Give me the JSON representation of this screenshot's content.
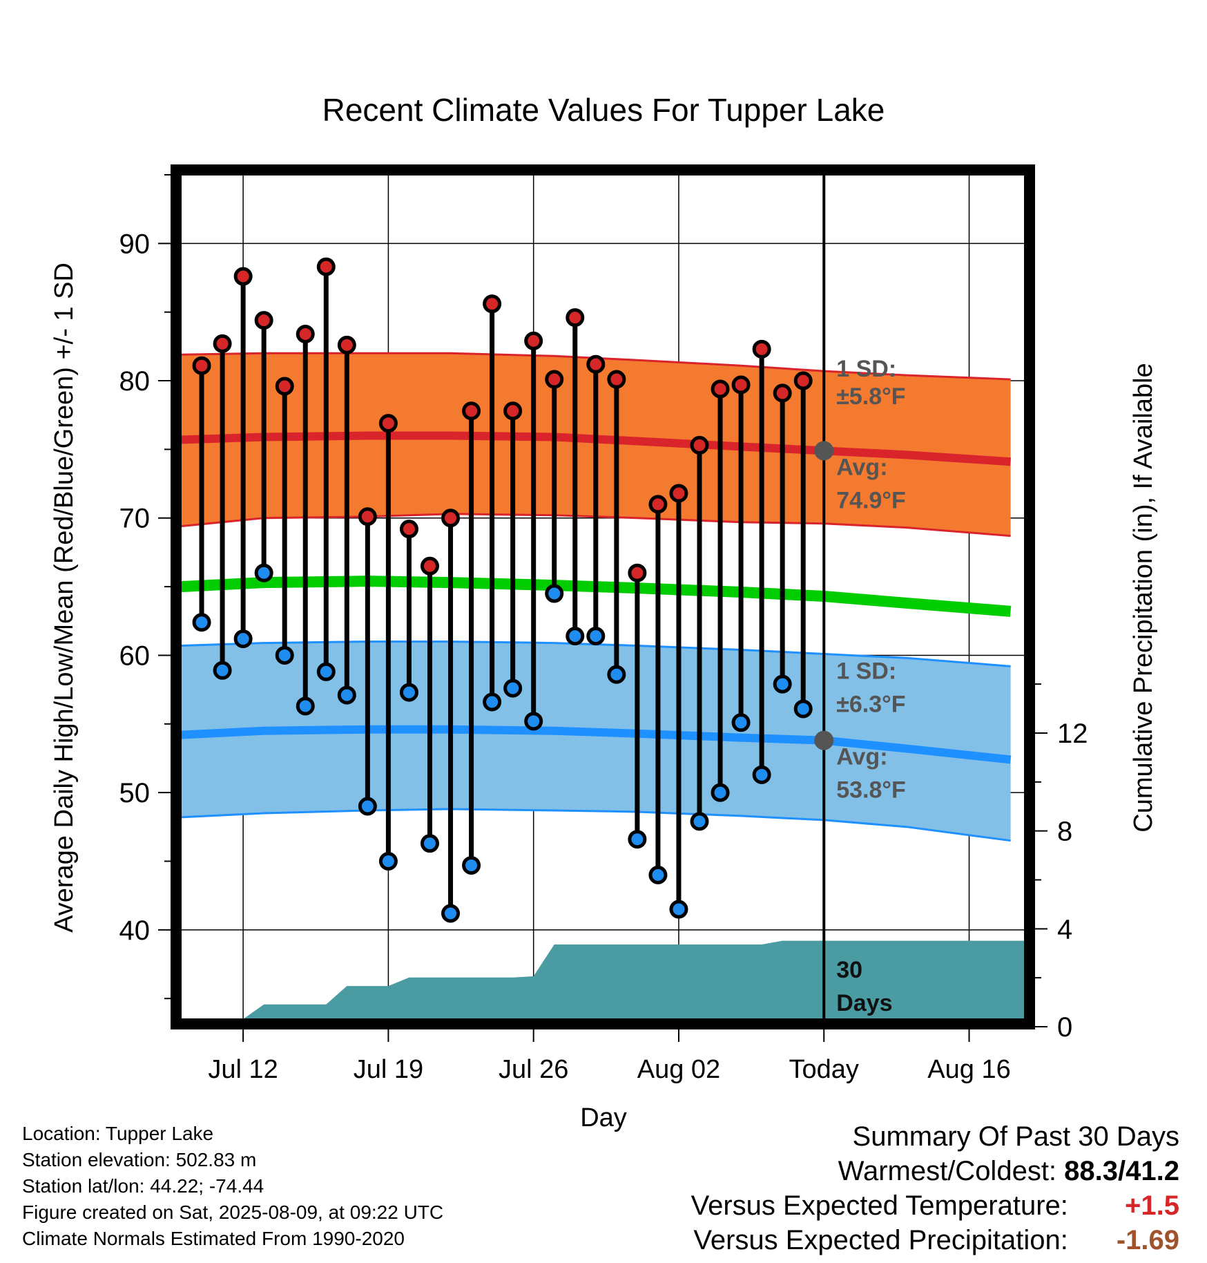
{
  "chart_data": {
    "type": "line",
    "title": "Recent Climate Values For Tupper Lake",
    "xlabel": "Day",
    "ylabel": "Average Daily High/Low/Mean (Red/Blue/Green) +/- 1 SD",
    "y2label": "Cumulative Precipitation (in), If Available",
    "x_start": "Jul 09",
    "x_end": "Aug 17",
    "today": "Aug 09",
    "ylim": [
      33.5,
      95
    ],
    "y2lim": [
      0,
      34.5
    ],
    "y_ticks": [
      40,
      50,
      60,
      70,
      80,
      90
    ],
    "y2_ticks": [
      0,
      4,
      8,
      12
    ],
    "x_ticks": [
      {
        "day": 3,
        "label": "Jul 12"
      },
      {
        "day": 10,
        "label": "Jul 19"
      },
      {
        "day": 17,
        "label": "Jul 26"
      },
      {
        "day": 24,
        "label": "Aug 02"
      },
      {
        "day": 31,
        "label": "Today"
      },
      {
        "day": 38,
        "label": "Aug 16"
      }
    ],
    "grid": true,
    "daily_high": [
      81.1,
      82.7,
      87.6,
      84.4,
      79.6,
      83.4,
      88.3,
      82.6,
      70.1,
      76.9,
      69.2,
      66.5,
      70.0,
      77.8,
      85.6,
      77.8,
      82.9,
      80.1,
      84.6,
      81.2,
      80.1,
      66.0,
      71.0,
      71.8,
      75.3,
      79.4,
      79.7,
      82.3,
      79.1,
      80.0
    ],
    "daily_low": [
      62.4,
      58.9,
      61.2,
      66.0,
      60.0,
      56.3,
      58.8,
      57.1,
      49.0,
      45.0,
      57.3,
      46.3,
      41.2,
      44.7,
      56.6,
      57.6,
      55.2,
      64.5,
      61.4,
      61.4,
      58.6,
      46.6,
      44.0,
      41.5,
      47.9,
      50.0,
      55.1,
      51.3,
      57.9,
      56.1
    ],
    "normal_high_avg": [
      75.7,
      75.9,
      76.0,
      76.0,
      75.9,
      75.6,
      75.2,
      74.9,
      74.6,
      74.1
    ],
    "normal_high_upper": [
      81.9,
      82.0,
      82.0,
      82.0,
      81.8,
      81.5,
      81.1,
      80.7,
      80.4,
      80.1
    ],
    "normal_high_lower": [
      69.4,
      70.0,
      70.1,
      70.3,
      70.2,
      70.0,
      69.7,
      69.6,
      69.3,
      68.7
    ],
    "normal_mean": [
      65.0,
      65.3,
      65.4,
      65.3,
      65.1,
      64.9,
      64.6,
      64.3,
      63.8,
      63.2
    ],
    "normal_low_avg": [
      54.2,
      54.5,
      54.6,
      54.6,
      54.5,
      54.3,
      54.0,
      53.8,
      53.2,
      52.4
    ],
    "normal_low_upper": [
      60.7,
      60.9,
      61.0,
      61.0,
      60.9,
      60.7,
      60.4,
      60.1,
      59.8,
      59.2
    ],
    "normal_low_lower": [
      48.2,
      48.5,
      48.7,
      48.8,
      48.7,
      48.6,
      48.3,
      48.0,
      47.5,
      46.5
    ],
    "normals_days": [
      0,
      4,
      9,
      13,
      18,
      22,
      27,
      31,
      35,
      40
    ],
    "cumulative_precip": [
      0,
      0,
      0,
      0.6,
      0.6,
      0.6,
      0.6,
      1.35,
      1.35,
      1.35,
      1.7,
      1.7,
      1.7,
      1.7,
      1.7,
      1.7,
      1.75,
      3.05,
      3.05,
      3.05,
      3.05,
      3.05,
      3.05,
      3.05,
      3.05,
      3.05,
      3.05,
      3.05,
      3.2,
      3.2,
      3.2
    ],
    "annotations": {
      "high_sd_label": "1 SD:",
      "high_sd_value": "±5.8°F",
      "high_avg_label": "Avg:",
      "high_avg_value": "74.9°F",
      "low_sd_label": "1 SD:",
      "low_sd_value": "±6.3°F",
      "low_avg_label": "Avg:",
      "low_avg_value": "53.8°F",
      "days_line1": "30",
      "days_line2": "Days"
    },
    "colors": {
      "high_band": "#f47a30",
      "high_line": "#d9242b",
      "low_band": "#82c0e8",
      "low_line": "#1f90ff",
      "mean_line": "#00cc00",
      "precip_fill": "#4a9ba2",
      "high_dot": "#d62728",
      "low_dot": "#1f8cf0",
      "annotation_text": "#555555"
    }
  },
  "station": {
    "location": "Location: Tupper Lake",
    "elevation": "Station elevation: 502.83 m",
    "latlon": "Station lat/lon: 44.22; -74.44",
    "created": "Figure created on Sat, 2025-08-09, at 09:22 UTC",
    "normals": "Climate Normals Estimated From 1990-2020"
  },
  "summary": {
    "title": "Summary Of Past 30 Days",
    "warmest_label": "Warmest/Coldest:",
    "warmest_value": "88.3/41.2",
    "temp_label": "Versus Expected Temperature:",
    "temp_value": "+1.5",
    "temp_color": "#d62728",
    "precip_label": "Versus Expected Precipitation:",
    "precip_value": "-1.69",
    "precip_color": "#a0522d"
  }
}
